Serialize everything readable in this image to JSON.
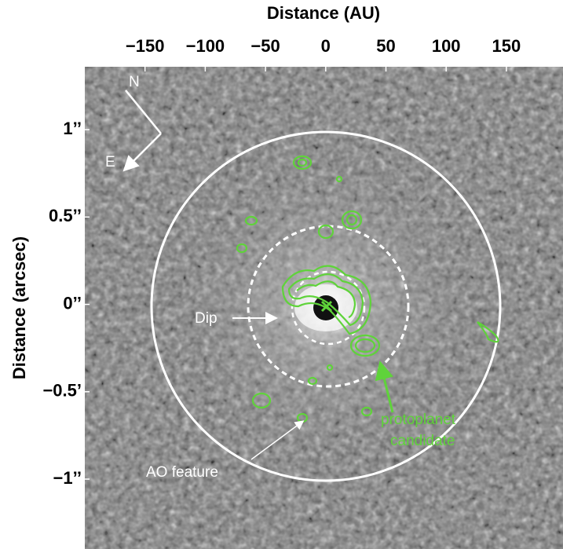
{
  "chart_data": {
    "type": "image",
    "xlabel": "Distance (AU)",
    "ylabel": "Distance (arcsec)",
    "xlim": [
      -200,
      197
    ],
    "xticks": [
      {
        "value": -150,
        "label": "−150"
      },
      {
        "value": -100,
        "label": "−100"
      },
      {
        "value": -50,
        "label": "−50"
      },
      0,
      50,
      100,
      150
    ],
    "ylim": [
      -1.4,
      1.36
    ],
    "yticks": [
      {
        "value": 1,
        "label": "1’’"
      },
      {
        "value": 0.5,
        "label": "0.5’’"
      },
      {
        "value": 0,
        "label": "0’’"
      },
      {
        "value": -0.5,
        "label": "−0.5’"
      },
      {
        "value": -1,
        "label": "−1’’"
      }
    ],
    "annotations": {
      "north": "N",
      "east": "E",
      "dip": "Dip",
      "ao": "AO feature",
      "candidate": [
        "protoplanet",
        "candidate"
      ]
    },
    "contour_color": "#5fd33a"
  }
}
